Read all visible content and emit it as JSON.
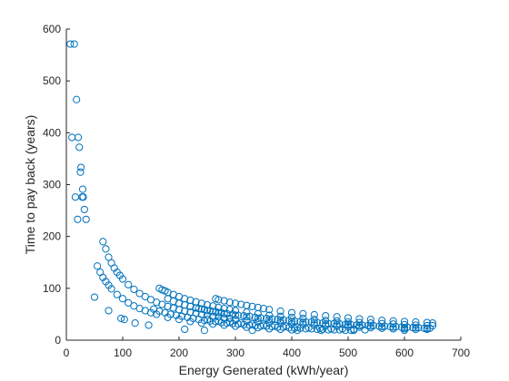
{
  "chart_data": {
    "type": "scatter",
    "title": "",
    "xlabel": "Energy Generated (kWh/year)",
    "ylabel": "Time to pay back (years)",
    "xlim": [
      0,
      700
    ],
    "ylim": [
      0,
      600
    ],
    "xticks": [
      0,
      100,
      200,
      300,
      400,
      500,
      600,
      700
    ],
    "yticks": [
      0,
      100,
      200,
      300,
      400,
      500,
      600
    ],
    "marker": "circle-open",
    "grid": false,
    "box": false,
    "series": [
      {
        "color": "#0072BD",
        "points": [
          [
            7,
            571
          ],
          [
            14,
            571
          ],
          [
            18,
            464
          ],
          [
            10,
            391
          ],
          [
            21,
            391
          ],
          [
            23,
            372
          ],
          [
            26,
            333
          ],
          [
            25,
            324
          ],
          [
            29,
            291
          ],
          [
            16,
            276
          ],
          [
            28,
            276
          ],
          [
            30,
            276
          ],
          [
            32,
            252
          ],
          [
            20,
            233
          ],
          [
            35,
            233
          ],
          [
            50,
            83
          ],
          [
            75,
            57
          ],
          [
            97,
            42
          ],
          [
            103,
            40
          ],
          [
            122,
            33
          ],
          [
            146,
            29
          ],
          [
            210,
            21
          ],
          [
            245,
            19
          ],
          [
            330,
            19
          ],
          [
            410,
            19
          ],
          [
            452,
            19
          ],
          [
            510,
            19
          ],
          [
            600,
            19
          ],
          [
            65,
            190
          ],
          [
            70,
            176
          ],
          [
            75,
            160
          ],
          [
            80,
            149
          ],
          [
            85,
            139
          ],
          [
            90,
            131
          ],
          [
            95,
            125
          ],
          [
            100,
            118
          ],
          [
            110,
            107
          ],
          [
            120,
            98
          ],
          [
            130,
            90
          ],
          [
            140,
            84
          ],
          [
            150,
            78
          ],
          [
            160,
            73
          ],
          [
            170,
            69
          ],
          [
            180,
            65
          ],
          [
            190,
            62
          ],
          [
            200,
            59
          ],
          [
            210,
            56
          ],
          [
            220,
            54
          ],
          [
            230,
            52
          ],
          [
            240,
            50
          ],
          [
            250,
            48
          ],
          [
            260,
            46
          ],
          [
            270,
            45
          ],
          [
            280,
            43
          ],
          [
            290,
            42
          ],
          [
            300,
            40
          ],
          [
            320,
            38
          ],
          [
            340,
            36
          ],
          [
            360,
            34
          ],
          [
            380,
            33
          ],
          [
            400,
            31
          ],
          [
            420,
            30
          ],
          [
            440,
            29
          ],
          [
            460,
            28
          ],
          [
            480,
            27
          ],
          [
            500,
            26
          ],
          [
            520,
            25
          ],
          [
            540,
            24
          ],
          [
            560,
            23
          ],
          [
            580,
            22
          ],
          [
            600,
            22
          ],
          [
            620,
            21
          ],
          [
            640,
            21
          ],
          [
            55,
            143
          ],
          [
            60,
            131
          ],
          [
            65,
            121
          ],
          [
            70,
            113
          ],
          [
            75,
            106
          ],
          [
            80,
            99
          ],
          [
            90,
            88
          ],
          [
            100,
            80
          ],
          [
            110,
            72
          ],
          [
            120,
            66
          ],
          [
            130,
            61
          ],
          [
            140,
            57
          ],
          [
            150,
            53
          ],
          [
            160,
            50
          ],
          [
            180,
            44
          ],
          [
            200,
            40
          ],
          [
            220,
            36
          ],
          [
            240,
            33
          ],
          [
            260,
            31
          ],
          [
            280,
            29
          ],
          [
            300,
            27
          ],
          [
            320,
            25
          ],
          [
            340,
            24
          ],
          [
            360,
            22
          ],
          [
            380,
            21
          ],
          [
            400,
            20
          ],
          [
            165,
            100
          ],
          [
            170,
            97
          ],
          [
            175,
            95
          ],
          [
            180,
            92
          ],
          [
            190,
            88
          ],
          [
            200,
            84
          ],
          [
            210,
            80
          ],
          [
            220,
            77
          ],
          [
            230,
            74
          ],
          [
            240,
            71
          ],
          [
            250,
            68
          ],
          [
            260,
            66
          ],
          [
            270,
            63
          ],
          [
            280,
            61
          ],
          [
            290,
            59
          ],
          [
            300,
            57
          ],
          [
            320,
            54
          ],
          [
            340,
            51
          ],
          [
            360,
            48
          ],
          [
            380,
            46
          ],
          [
            400,
            44
          ],
          [
            420,
            42
          ],
          [
            440,
            40
          ],
          [
            460,
            38
          ],
          [
            480,
            37
          ],
          [
            500,
            35
          ],
          [
            520,
            34
          ],
          [
            540,
            33
          ],
          [
            560,
            32
          ],
          [
            580,
            31
          ],
          [
            600,
            30
          ],
          [
            620,
            29
          ],
          [
            640,
            28
          ],
          [
            650,
            28
          ],
          [
            180,
            80
          ],
          [
            190,
            75
          ],
          [
            200,
            71
          ],
          [
            210,
            68
          ],
          [
            220,
            65
          ],
          [
            230,
            62
          ],
          [
            240,
            60
          ],
          [
            250,
            57
          ],
          [
            260,
            55
          ],
          [
            270,
            53
          ],
          [
            280,
            51
          ],
          [
            300,
            48
          ],
          [
            320,
            45
          ],
          [
            340,
            42
          ],
          [
            360,
            40
          ],
          [
            380,
            38
          ],
          [
            400,
            36
          ],
          [
            420,
            34
          ],
          [
            440,
            33
          ],
          [
            460,
            31
          ],
          [
            480,
            30
          ],
          [
            500,
            29
          ],
          [
            520,
            28
          ],
          [
            540,
            27
          ],
          [
            560,
            26
          ],
          [
            580,
            25
          ],
          [
            600,
            24
          ],
          [
            620,
            24
          ],
          [
            640,
            23
          ],
          [
            265,
            80
          ],
          [
            270,
            78
          ],
          [
            280,
            76
          ],
          [
            290,
            73
          ],
          [
            300,
            71
          ],
          [
            310,
            69
          ],
          [
            320,
            67
          ],
          [
            330,
            65
          ],
          [
            340,
            63
          ],
          [
            350,
            61
          ],
          [
            360,
            59
          ],
          [
            380,
            56
          ],
          [
            400,
            53
          ],
          [
            420,
            51
          ],
          [
            440,
            49
          ],
          [
            460,
            47
          ],
          [
            480,
            45
          ],
          [
            500,
            43
          ],
          [
            520,
            41
          ],
          [
            540,
            40
          ],
          [
            560,
            38
          ],
          [
            580,
            37
          ],
          [
            600,
            36
          ],
          [
            620,
            35
          ],
          [
            640,
            34
          ],
          [
            650,
            33
          ],
          [
            250,
            40
          ],
          [
            270,
            37
          ],
          [
            290,
            35
          ],
          [
            310,
            33
          ],
          [
            330,
            31
          ],
          [
            350,
            29
          ],
          [
            370,
            28
          ],
          [
            390,
            27
          ],
          [
            410,
            25
          ],
          [
            430,
            24
          ],
          [
            450,
            23
          ],
          [
            470,
            22
          ],
          [
            490,
            22
          ],
          [
            510,
            21
          ],
          [
            530,
            20
          ],
          [
            230,
            62
          ],
          [
            235,
            61
          ],
          [
            245,
            59
          ],
          [
            255,
            57
          ],
          [
            265,
            55
          ],
          [
            275,
            53
          ],
          [
            285,
            51
          ],
          [
            295,
            50
          ],
          [
            305,
            48
          ],
          [
            315,
            47
          ],
          [
            325,
            46
          ],
          [
            335,
            44
          ],
          [
            345,
            43
          ],
          [
            355,
            42
          ],
          [
            365,
            41
          ],
          [
            375,
            40
          ],
          [
            385,
            39
          ],
          [
            395,
            38
          ],
          [
            405,
            37
          ],
          [
            415,
            36
          ],
          [
            425,
            35
          ],
          [
            435,
            35
          ],
          [
            445,
            34
          ],
          [
            455,
            33
          ],
          [
            465,
            32
          ],
          [
            475,
            32
          ],
          [
            485,
            31
          ],
          [
            495,
            30
          ],
          [
            505,
            30
          ],
          [
            515,
            29
          ],
          [
            525,
            29
          ],
          [
            535,
            28
          ],
          [
            545,
            28
          ],
          [
            555,
            27
          ],
          [
            565,
            27
          ],
          [
            575,
            26
          ],
          [
            585,
            26
          ],
          [
            595,
            25
          ],
          [
            605,
            25
          ],
          [
            615,
            24
          ],
          [
            625,
            24
          ],
          [
            635,
            23
          ],
          [
            645,
            23
          ],
          [
            155,
            60
          ],
          [
            165,
            56
          ],
          [
            175,
            53
          ],
          [
            185,
            50
          ],
          [
            195,
            48
          ],
          [
            205,
            46
          ],
          [
            215,
            44
          ],
          [
            225,
            42
          ],
          [
            235,
            40
          ],
          [
            245,
            38
          ],
          [
            255,
            37
          ],
          [
            265,
            36
          ],
          [
            275,
            34
          ],
          [
            285,
            33
          ],
          [
            295,
            32
          ],
          [
            305,
            31
          ],
          [
            315,
            30
          ],
          [
            325,
            29
          ],
          [
            335,
            28
          ],
          [
            345,
            27
          ],
          [
            355,
            27
          ],
          [
            365,
            26
          ],
          [
            375,
            25
          ],
          [
            385,
            25
          ],
          [
            395,
            24
          ],
          [
            405,
            23
          ],
          [
            415,
            23
          ],
          [
            425,
            22
          ],
          [
            435,
            22
          ],
          [
            445,
            21
          ],
          [
            455,
            21
          ],
          [
            465,
            20
          ],
          [
            475,
            20
          ],
          [
            485,
            20
          ],
          [
            495,
            19
          ],
          [
            505,
            19
          ]
        ]
      }
    ]
  }
}
